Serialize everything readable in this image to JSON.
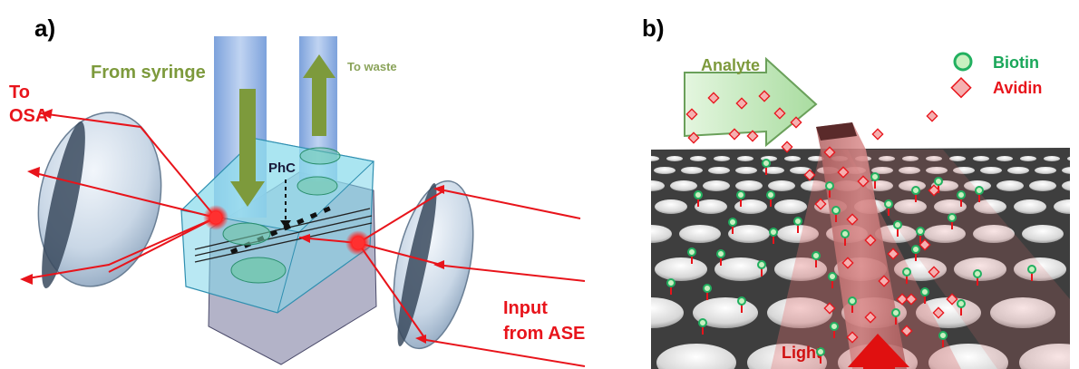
{
  "panel_a": {
    "tag": "a)",
    "from_syringe": "From syringe",
    "to_waste": "To waste",
    "phc": "PhC",
    "to_osa_1": "To",
    "to_osa_2": "OSA",
    "input_1": "Input",
    "input_2": "from ASE"
  },
  "panel_b": {
    "tag": "b)",
    "analyte": "Analyte",
    "legend_biotin": "Biotin",
    "legend_avidin": "Avidin",
    "light": "Light"
  },
  "colors": {
    "red": "#e8141b",
    "olive": "#7d9a3c",
    "olive_light": "#8aa35a",
    "biotin_green": "#22b060",
    "biotin_text": "#1aa75a",
    "chip_cyan": "#7fd6ea",
    "tube_blue": "#8fb3e6",
    "slab": "#3e3e3e"
  }
}
